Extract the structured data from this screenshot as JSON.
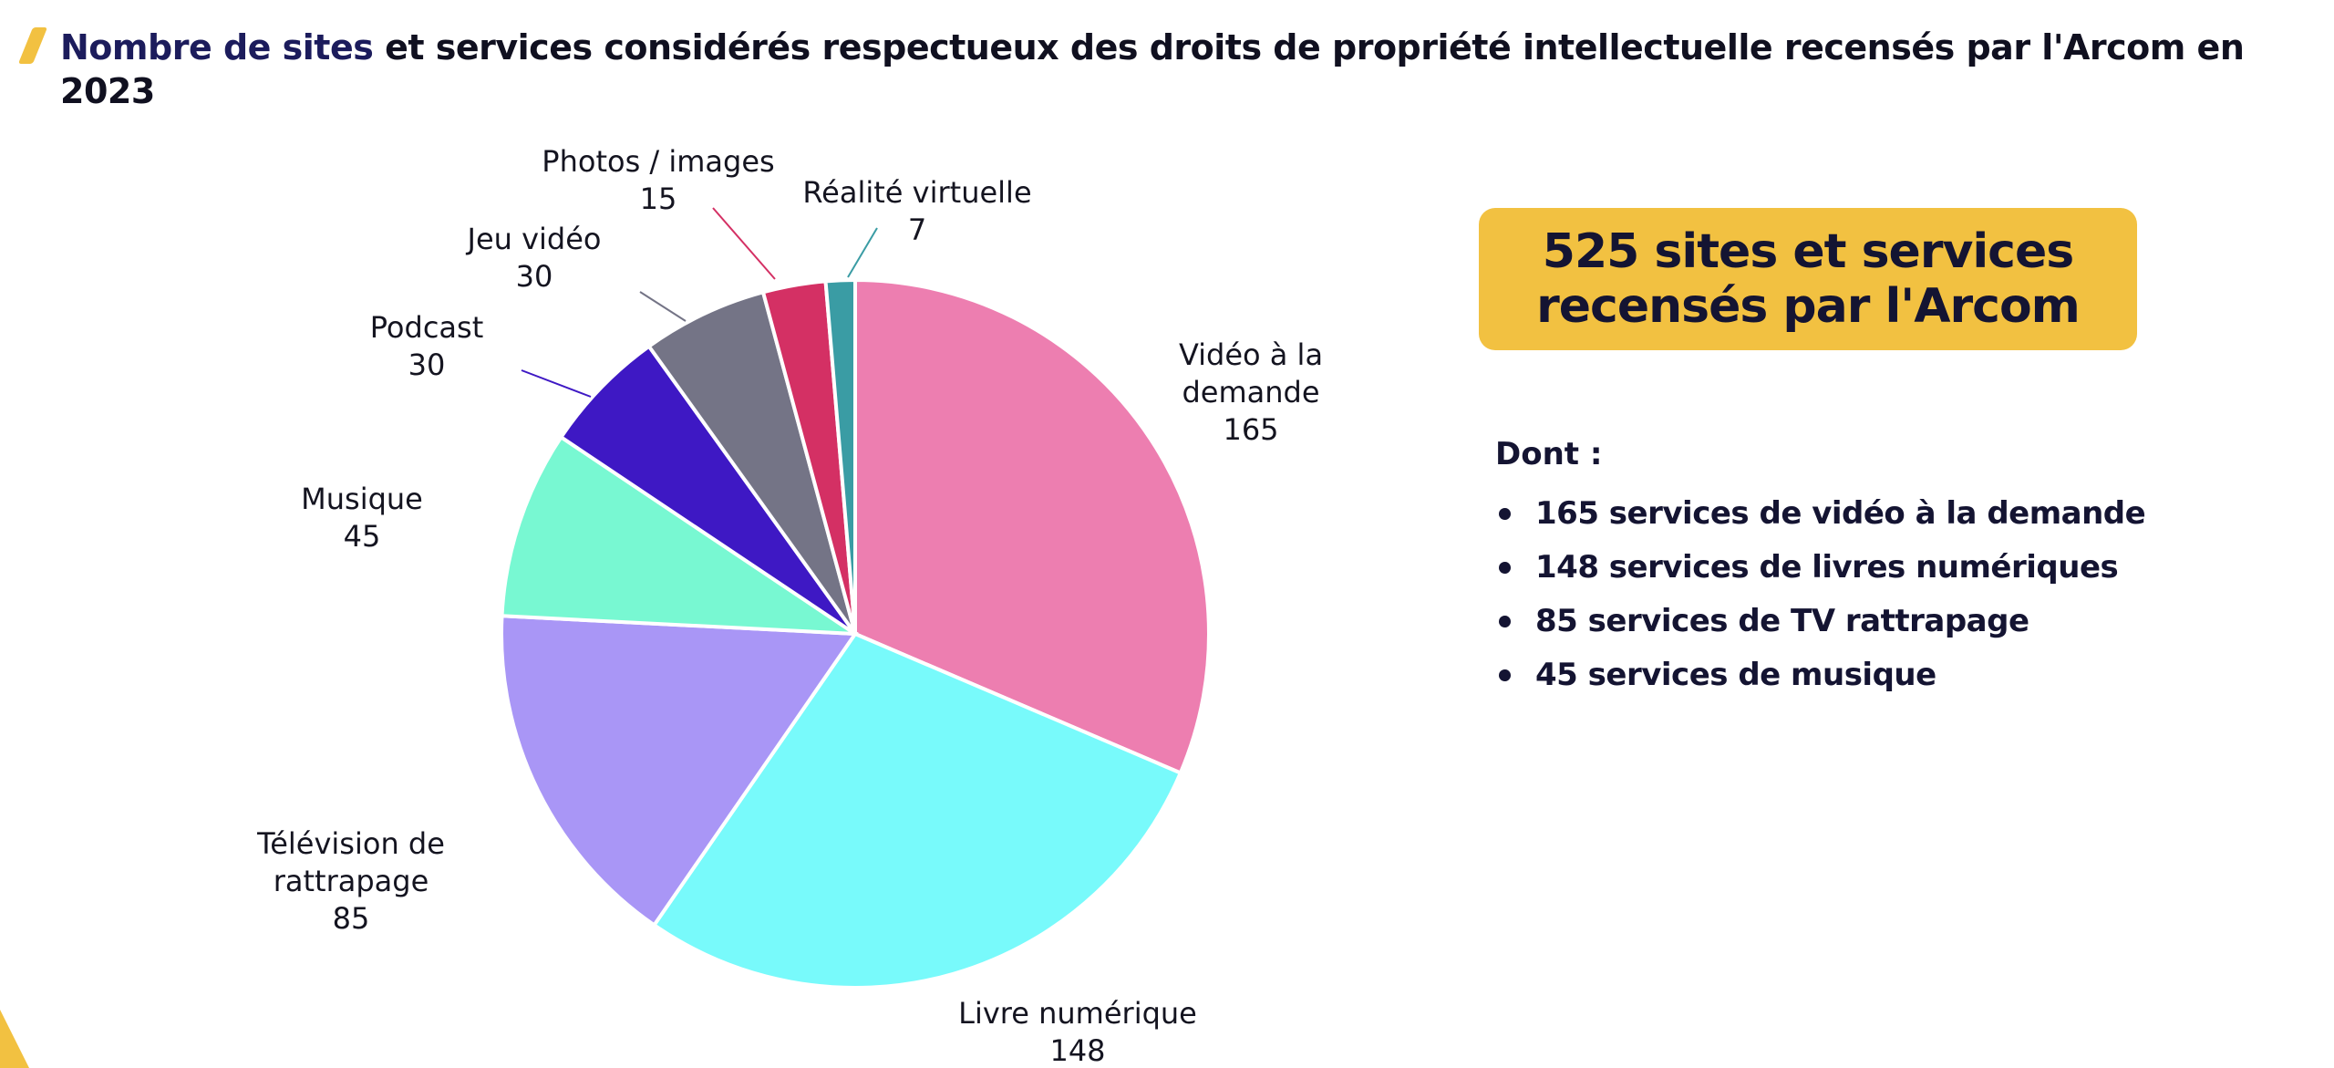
{
  "title": {
    "accent": "Nombre de sites",
    "rest": " et services considérés respectueux des droits de propriété intellectuelle recensés par l'Arcom en 2023"
  },
  "chart_data": {
    "type": "pie",
    "title": "Nombre de sites et services considérés respectueux des droits de propriété intellectuelle recensés par l'Arcom en 2023",
    "slices": [
      {
        "label": [
          "Vidéo à la",
          "demande"
        ],
        "value": 165,
        "color": "#ed7eb0"
      },
      {
        "label": [
          "Livre numérique"
        ],
        "value": 148,
        "color": "#78fafb"
      },
      {
        "label": [
          "Télévision de",
          "rattrapage"
        ],
        "value": 85,
        "color": "#a996f6"
      },
      {
        "label": [
          "Musique"
        ],
        "value": 45,
        "color": "#78f8d2"
      },
      {
        "label": [
          "Podcast"
        ],
        "value": 30,
        "color": "#3e18c4"
      },
      {
        "label": [
          "Jeu vidéo"
        ],
        "value": 30,
        "color": "#747486"
      },
      {
        "label": [
          "Photos / images"
        ],
        "value": 15,
        "color": "#d43064"
      },
      {
        "label": [
          "Réalité virtuelle"
        ],
        "value": 7,
        "color": "#3a9ca4"
      }
    ],
    "total": 525
  },
  "callout": {
    "text": "525 sites et services recensés par l'Arcom"
  },
  "breakdown": {
    "intro": "Dont :",
    "items": [
      "165 services de vidéo à la demande",
      "148 services de livres numériques",
      "85 services de TV rattrapage",
      "45 services de musique"
    ]
  },
  "colors": {
    "accent_yellow": "#f2c141",
    "navy": "#141432"
  }
}
